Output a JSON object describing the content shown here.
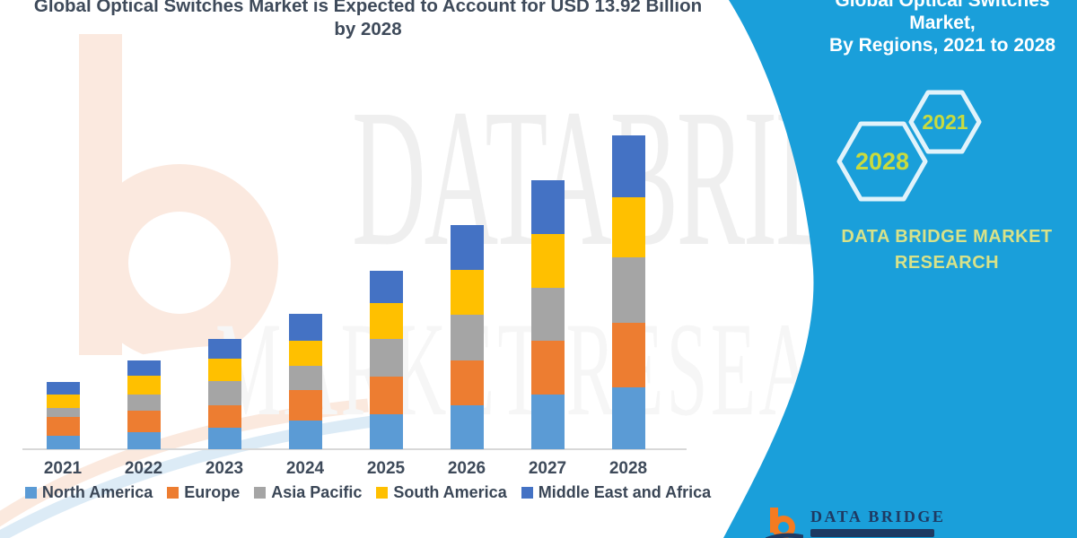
{
  "header": {
    "title_line1": "Global Optical Switches Market is Expected to Account for USD 13.92 Billion",
    "title_line2": "by 2028"
  },
  "right_panel": {
    "heading_line1": "Global Optical Switches Market,",
    "heading_line2": "By Regions, 2021 to 2028",
    "badge_years": [
      "2028",
      "2021"
    ],
    "brand_line1": "DATA BRIDGE MARKET",
    "brand_line2": "RESEARCH",
    "background_color": "#1a9fda",
    "badge_text_color": "#c9db3e",
    "badge_outline_color": "#e1f3fb"
  },
  "watermarks": {
    "row1": "DATABRIDGE",
    "row2": "MARKET RESEARCH"
  },
  "footer_logo": {
    "brand": "DATA BRIDGE",
    "b_color": "#f47b20",
    "navy_color": "#1e3a63"
  },
  "chart_data": {
    "type": "bar",
    "stacked": true,
    "title": "Global Optical Switches Market is Expected to Account for USD 13.92 Billion by 2028",
    "unit": "USD Billion",
    "categories": [
      "2021",
      "2022",
      "2023",
      "2024",
      "2025",
      "2026",
      "2027",
      "2028"
    ],
    "series": [
      {
        "name": "North America",
        "color": "#5b9bd5",
        "values": [
          0.59,
          0.75,
          0.95,
          1.27,
          1.55,
          1.94,
          2.42,
          2.74
        ]
      },
      {
        "name": "Europe",
        "color": "#ed7d31",
        "values": [
          0.83,
          0.95,
          0.99,
          1.35,
          1.67,
          1.98,
          2.38,
          2.86
        ]
      },
      {
        "name": "Asia Pacific",
        "color": "#a5a5a5",
        "values": [
          0.4,
          0.71,
          1.07,
          1.07,
          1.67,
          2.06,
          2.38,
          2.92
        ]
      },
      {
        "name": "South America",
        "color": "#ffc000",
        "values": [
          0.59,
          0.87,
          0.99,
          1.11,
          1.59,
          1.98,
          2.38,
          2.66
        ]
      },
      {
        "name": "Middle East and Africa",
        "color": "#4472c4",
        "values": [
          0.56,
          0.67,
          0.91,
          1.19,
          1.43,
          1.98,
          2.38,
          2.74
        ]
      }
    ],
    "totals": [
      2.97,
      3.95,
      4.91,
      5.99,
      7.91,
      9.94,
      11.94,
      13.92
    ],
    "ylim": [
      0,
      13.92
    ],
    "gridlines": false,
    "y_axis_shown": false,
    "legend_position": "bottom"
  }
}
